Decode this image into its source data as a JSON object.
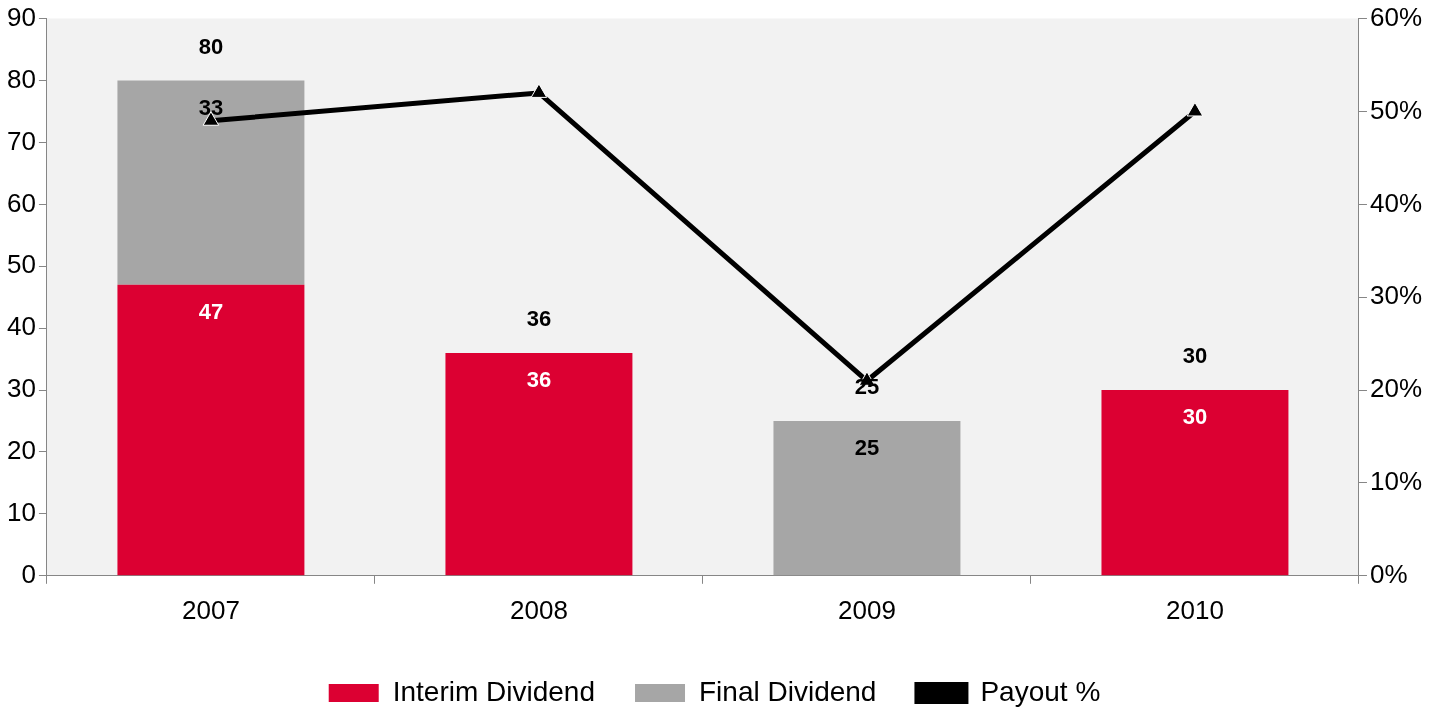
{
  "chart_data": {
    "type": "bar",
    "categories": [
      "2007",
      "2008",
      "2009",
      "2010"
    ],
    "stacked": true,
    "series": [
      {
        "name": "Interim Dividend",
        "color": "#dc0032",
        "values": [
          47,
          36,
          null,
          30
        ],
        "value_labels": [
          "47",
          "36",
          null,
          "30"
        ]
      },
      {
        "name": "Final Dividend",
        "color": "#a6a6a6",
        "values": [
          33,
          null,
          25,
          null
        ],
        "value_labels": [
          "33",
          null,
          "25",
          null
        ]
      },
      {
        "name": "Payout %",
        "type": "line",
        "axis": "y2",
        "color": "#000000",
        "values": [
          49,
          52,
          21,
          50
        ]
      }
    ],
    "ylim": [
      0,
      90
    ],
    "yticks": [
      0,
      10,
      20,
      30,
      40,
      50,
      60,
      70,
      80,
      90
    ],
    "y2lim": [
      0,
      60
    ],
    "y2ticks": [
      {
        "value": 0,
        "label": "0%"
      },
      {
        "value": 10,
        "label": "10%"
      },
      {
        "value": 20,
        "label": "20%"
      },
      {
        "value": 30,
        "label": "30%"
      },
      {
        "value": 40,
        "label": "40%"
      },
      {
        "value": 50,
        "label": "50%"
      },
      {
        "value": 60,
        "label": "60%"
      }
    ],
    "totals": [
      "80",
      "36",
      "25",
      "30"
    ],
    "legend": "bottom",
    "marker": "triangle",
    "grid": false
  }
}
